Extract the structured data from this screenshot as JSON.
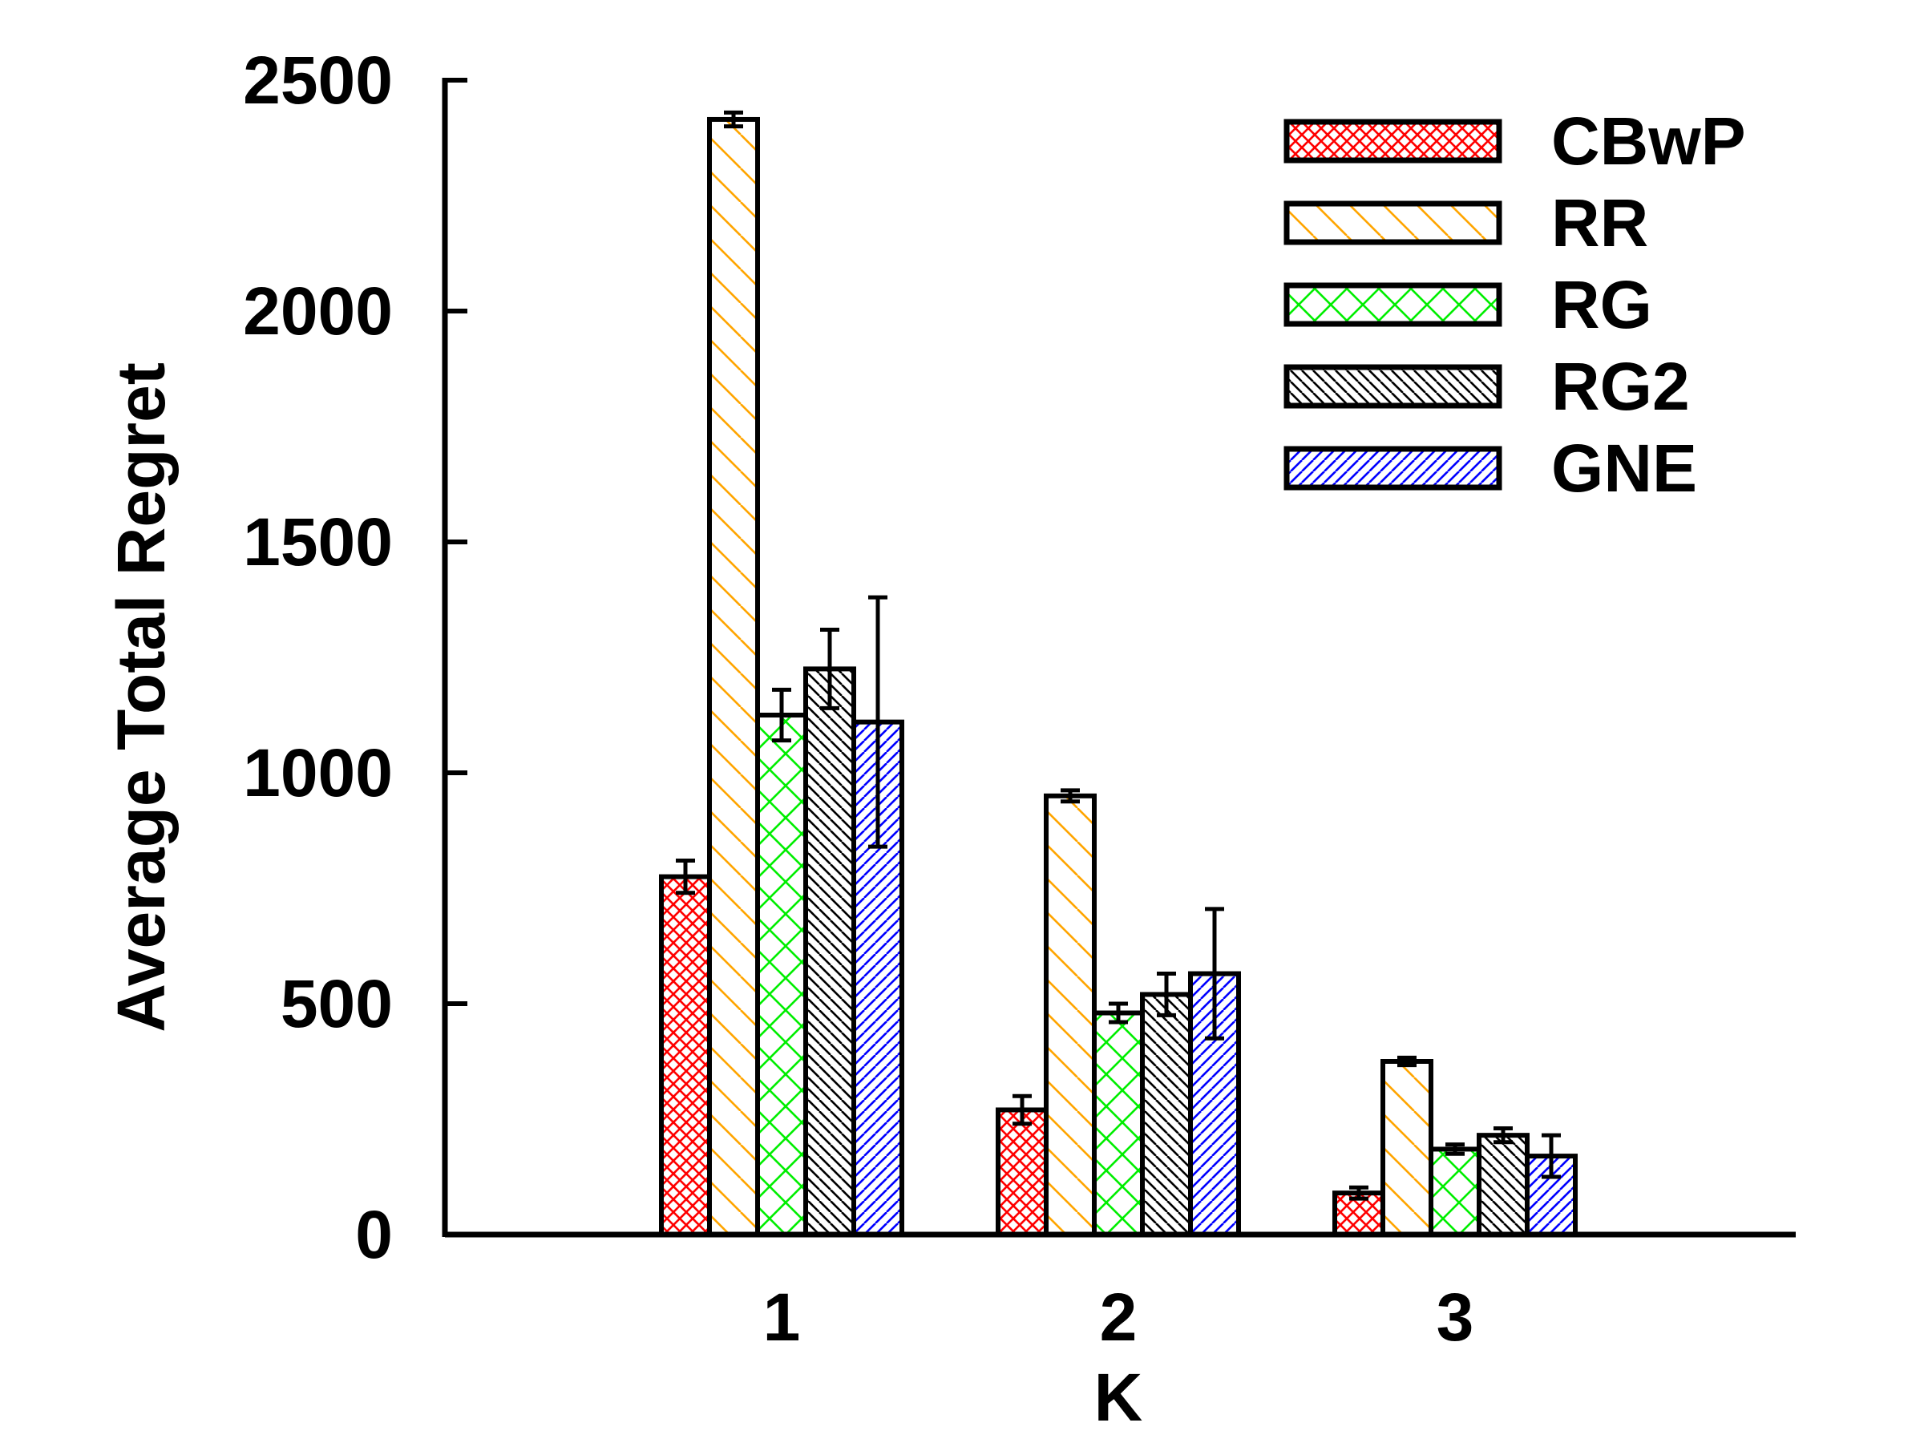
{
  "colors": {
    "CBwP": "#ff0000",
    "RR": "#ffa500",
    "RG": "#00ee00",
    "RG2": "#000000",
    "GNE": "#0000ff",
    "axis": "#000000"
  },
  "chart_data": {
    "type": "bar",
    "xlabel": "K",
    "ylabel": "Average Total Regret",
    "categories": [
      "1",
      "2",
      "3"
    ],
    "ylim": [
      0,
      2500
    ],
    "yticks": [
      0,
      500,
      1000,
      1500,
      2000,
      2500
    ],
    "ytick_labels": [
      "0",
      "500",
      "1000",
      "1500",
      "2000",
      "2500"
    ],
    "grid": false,
    "legend_position": "top-right",
    "series": [
      {
        "name": "CBwP",
        "pattern": "crosshatch-dense",
        "values": [
          775,
          270,
          90
        ],
        "errors": [
          35,
          30,
          12
        ]
      },
      {
        "name": "RR",
        "pattern": "diagonal-down",
        "values": [
          2415,
          950,
          375
        ],
        "errors": [
          15,
          12,
          8
        ]
      },
      {
        "name": "RG",
        "pattern": "crosshatch",
        "values": [
          1125,
          480,
          185
        ],
        "errors": [
          55,
          20,
          10
        ]
      },
      {
        "name": "RG2",
        "pattern": "diagonal-down-dense",
        "values": [
          1225,
          520,
          215
        ],
        "errors": [
          85,
          45,
          15
        ]
      },
      {
        "name": "GNE",
        "pattern": "diagonal-up",
        "values": [
          1110,
          565,
          170
        ],
        "errors": [
          270,
          140,
          45
        ]
      }
    ]
  }
}
